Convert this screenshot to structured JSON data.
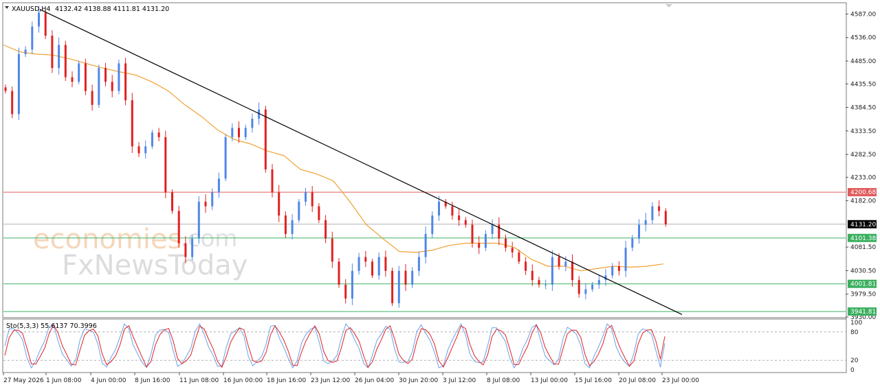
{
  "header": {
    "menu_icon": "triangle-down-icon",
    "symbol": "XAUUSD,H4",
    "ohlc": "4132.42 4138.88 4111.81 4131.20"
  },
  "watermark": {
    "line1_left": "economies",
    "line1_right": ".com",
    "line2": "FxNewsToday"
  },
  "indicator_label": "Sto(5,3,3) 55.6137 70.3996",
  "colors": {
    "bull": "#4f86e8",
    "bear": "#e02020",
    "ma": "#f0a030",
    "resistance": "#e05a5a",
    "support": "#3cb060",
    "price_tag": "#000000",
    "stoch_main": "#6aa0ea",
    "stoch_signal": "#e02020"
  },
  "chart_data": {
    "type": "candlestick",
    "symbol": "XAUUSD",
    "timeframe": "H4",
    "ylim": [
      3930.0,
      4610.0
    ],
    "y_ticks": [
      "4587.00",
      "4536.00",
      "4485.00",
      "4435.50",
      "4384.50",
      "4333.50",
      "4282.50",
      "4233.00",
      "4182.00",
      "4081.50",
      "4030.50",
      "3979.50",
      "3930.00"
    ],
    "x_ticks": [
      "27 May 2026",
      "1 Jun 08:00",
      "4 Jun 00:00",
      "8 Jun 16:00",
      "11 Jun 08:00",
      "16 Jun 00:00",
      "18 Jun 16:00",
      "23 Jun 12:00",
      "26 Jun 04:00",
      "30 Jun 20:00",
      "3 Jul 12:00",
      "8 Jul 08:00",
      "13 Jul 00:00",
      "15 Jul 16:00",
      "20 Jul 08:00",
      "23 Jul 00:00"
    ],
    "close_path": [
      4420,
      4370,
      4500,
      4510,
      4560,
      4590,
      4540,
      4470,
      4520,
      4450,
      4440,
      4480,
      4420,
      4390,
      4470,
      4440,
      4420,
      4480,
      4400,
      4300,
      4285,
      4300,
      4330,
      4320,
      4200,
      4160,
      4090,
      4060,
      4100,
      4180,
      4170,
      4200,
      4230,
      4320,
      4340,
      4320,
      4340,
      4360,
      4380,
      4250,
      4200,
      4150,
      4110,
      4140,
      4180,
      4200,
      4170,
      4140,
      4100,
      4050,
      4000,
      3970,
      4030,
      4060,
      4050,
      4020,
      4060,
      4030,
      3960,
      4030,
      4000,
      4030,
      4060,
      4110,
      4150,
      4180,
      4170,
      4150,
      4140,
      4130,
      4090,
      4080,
      4110,
      4130,
      4100,
      4080,
      4070,
      4050,
      4030,
      4010,
      4000,
      4000,
      4060,
      4040,
      4050,
      4010,
      3980,
      3990,
      4000,
      4010,
      4020,
      4040,
      4030,
      4080,
      4100,
      4130,
      4140,
      4170,
      4160,
      4131.2
    ],
    "ma_path": [
      4520,
      4505,
      4500,
      4498,
      4490,
      4480,
      4470,
      4462,
      4455,
      4440,
      4420,
      4390,
      4365,
      4335,
      4315,
      4305,
      4290,
      4280,
      4250,
      4240,
      4225,
      4180,
      4130,
      4100,
      4072,
      4070,
      4075,
      4085,
      4090,
      4090,
      4090,
      4080,
      4055,
      4040,
      4040,
      4030,
      4035,
      4040,
      4038,
      4040,
      4045
    ],
    "trendline": {
      "from": {
        "bar": 0,
        "price": 4600
      },
      "to": {
        "bar": 99,
        "price": 3965
      }
    },
    "levels": [
      {
        "price": 4200.68,
        "label": "4200.68",
        "kind": "resistance"
      },
      {
        "price": 4131.2,
        "label": "4131.20",
        "kind": "current"
      },
      {
        "price": 4101.38,
        "label": "4101.38",
        "kind": "support"
      },
      {
        "price": 4001.81,
        "label": "4001.81",
        "kind": "support"
      },
      {
        "price": 3941.81,
        "label": "3941.81",
        "kind": "support"
      }
    ],
    "stochastic": {
      "k": 55.6137,
      "d": 70.3996,
      "ylim": [
        0,
        100
      ],
      "y_ticks": [
        "100",
        "80",
        "20",
        "0"
      ],
      "levels": [
        80,
        20
      ]
    }
  }
}
